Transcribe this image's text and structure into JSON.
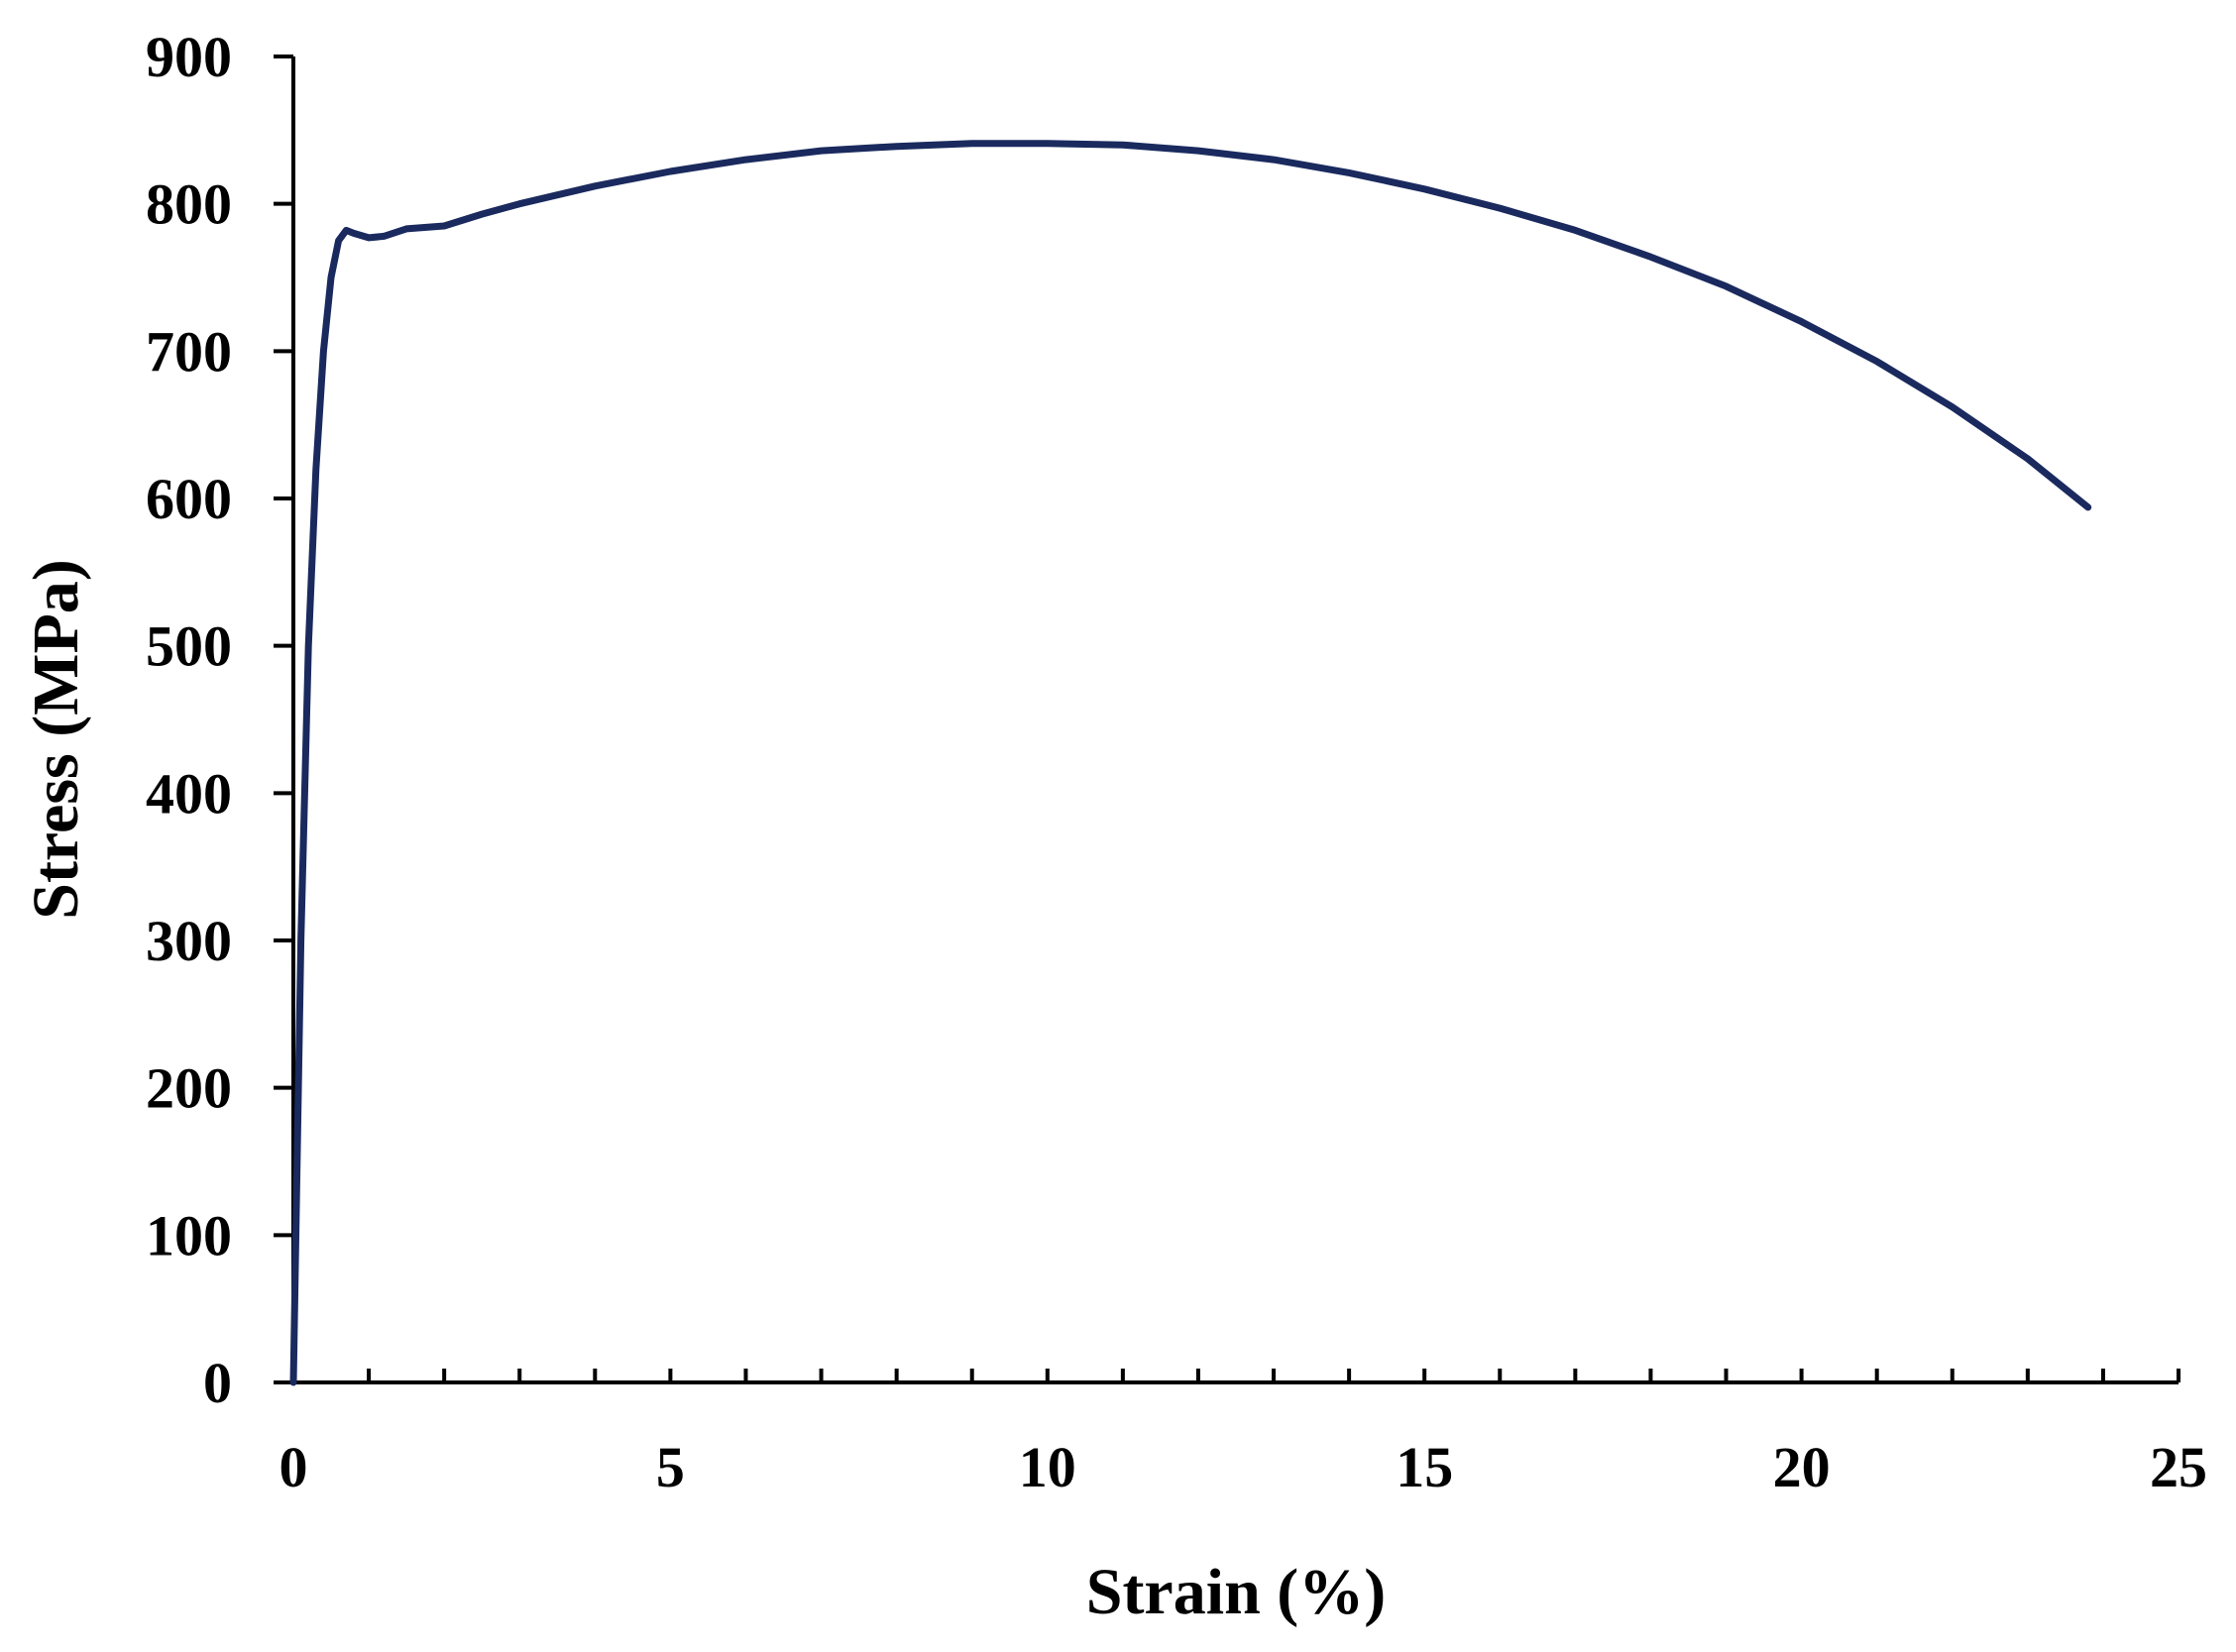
{
  "chart_data": {
    "type": "line",
    "title": "",
    "xlabel": "Strain (%)",
    "ylabel": "Stress (MPa)",
    "xlim": [
      0,
      25
    ],
    "ylim": [
      0,
      900
    ],
    "x_ticks": [
      0,
      5,
      10,
      15,
      20,
      25
    ],
    "x_tick_labels": [
      "0",
      "5",
      "10",
      "15",
      "20",
      "25"
    ],
    "x_minor_step": 1,
    "y_ticks": [
      0,
      100,
      200,
      300,
      400,
      500,
      600,
      700,
      800,
      900
    ],
    "y_tick_labels": [
      "0",
      "100",
      "200",
      "300",
      "400",
      "500",
      "600",
      "700",
      "800",
      "900"
    ],
    "grid": false,
    "legend": "none",
    "series": [
      {
        "color": "#1a2a5e",
        "x": [
          0,
          0.1,
          0.2,
          0.3,
          0.4,
          0.5,
          0.6,
          0.7,
          0.8,
          1.0,
          1.2,
          1.5,
          2.0,
          2.5,
          3.0,
          4.0,
          5.0,
          6.0,
          7.0,
          8.0,
          9.0,
          10.0,
          11.0,
          12.0,
          13.0,
          14.0,
          15.0,
          16.0,
          17.0,
          18.0,
          19.0,
          20.0,
          21.0,
          22.0,
          23.0,
          23.8
        ],
        "y": [
          0,
          300,
          500,
          620,
          700,
          750,
          775,
          782,
          780,
          777,
          778,
          783,
          785,
          793,
          800,
          812,
          822,
          830,
          836,
          839,
          841,
          841,
          840,
          836,
          830,
          821,
          810,
          797,
          782,
          764,
          744,
          720,
          693,
          662,
          627,
          594
        ]
      }
    ]
  }
}
